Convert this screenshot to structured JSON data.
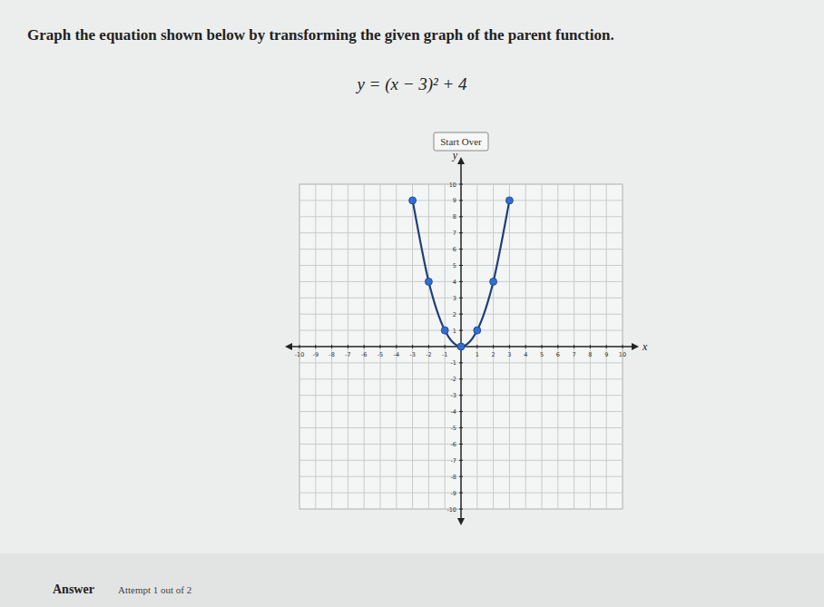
{
  "page": {
    "instruction": "Graph the equation shown below by transforming the given graph of the parent function.",
    "equation": "y = (x − 3)² + 4",
    "button": "Start Over",
    "answer_label": "Answer",
    "attempt": "Attempt 1 out of 2"
  },
  "chart_data": {
    "type": "line",
    "x_label": "x",
    "y_label": "y",
    "x": [
      -3,
      -2,
      -1,
      0,
      1,
      2,
      3
    ],
    "values": [
      9,
      4,
      1,
      0,
      1,
      4,
      9
    ],
    "color": "#1f3f7a",
    "marker": "circle",
    "line_style": "solid",
    "xlim": [
      -10,
      10
    ],
    "ylim": [
      -10,
      10
    ],
    "xticks": [
      -10,
      -9,
      -8,
      -7,
      -6,
      -5,
      -4,
      -3,
      -2,
      -1,
      1,
      2,
      3,
      4,
      5,
      6,
      7,
      8,
      9,
      10
    ],
    "yticks": [
      -10,
      -9,
      -8,
      -7,
      -6,
      -5,
      -4,
      -3,
      -2,
      -1,
      1,
      2,
      3,
      4,
      5,
      6,
      7,
      8,
      9,
      10
    ],
    "grid": true
  }
}
